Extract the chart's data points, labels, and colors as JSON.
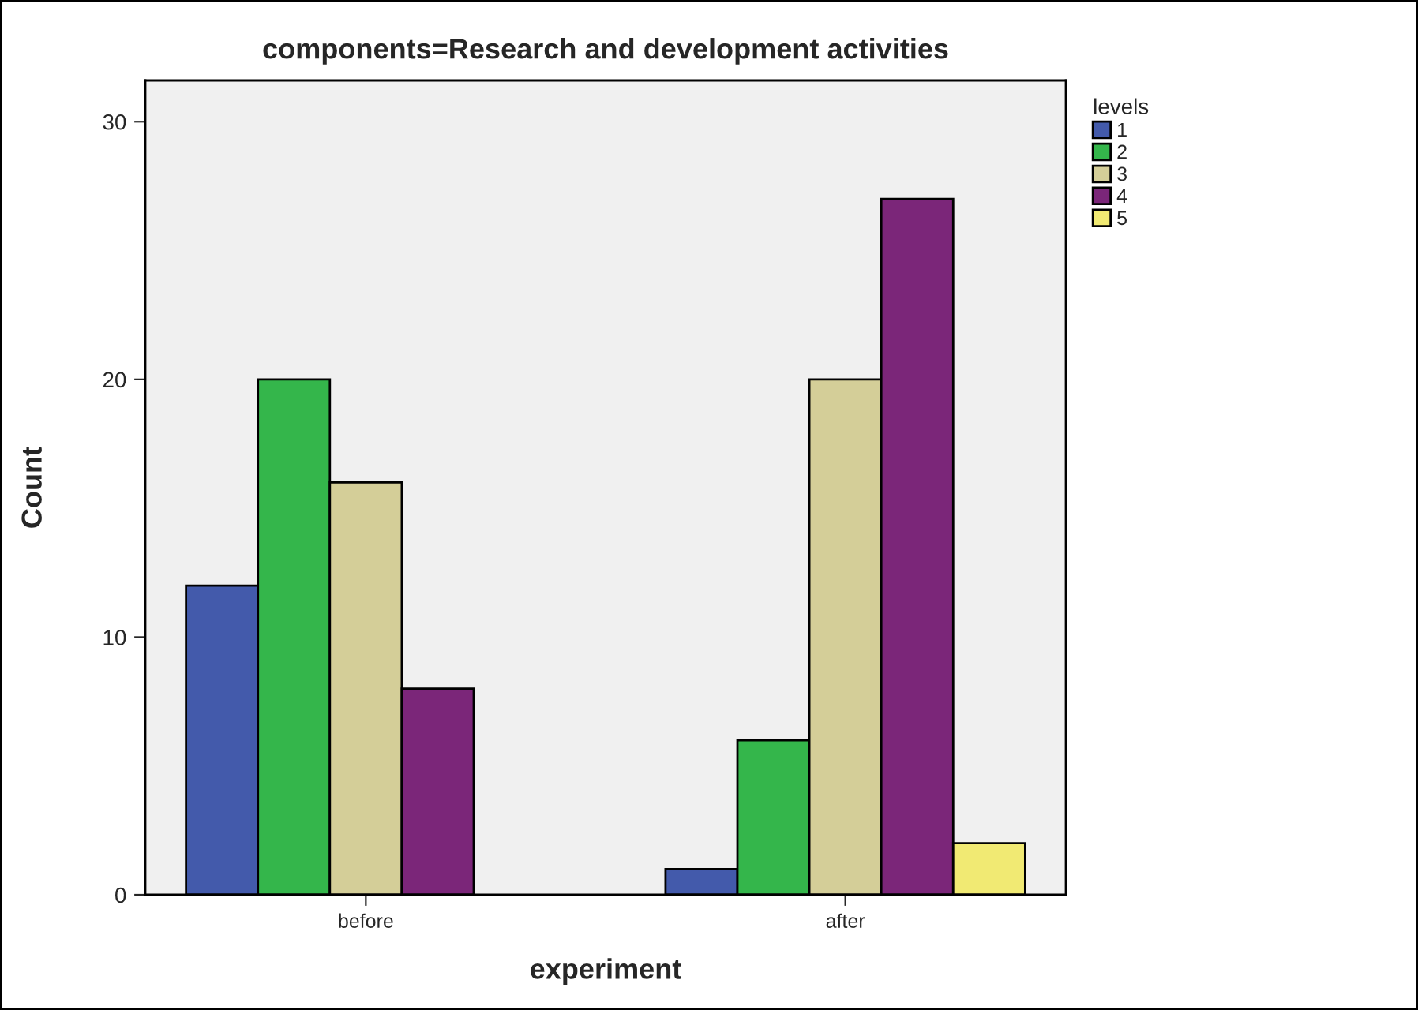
{
  "chart_data": {
    "type": "bar",
    "title": "components=Research and development activities",
    "xlabel": "experiment",
    "ylabel": "Count",
    "legend_title": "levels",
    "categories": [
      "before",
      "after"
    ],
    "series": [
      {
        "name": "1",
        "color": "#435aab",
        "values": [
          12,
          1
        ]
      },
      {
        "name": "2",
        "color": "#34b64b",
        "values": [
          20,
          6
        ]
      },
      {
        "name": "3",
        "color": "#d4ce98",
        "values": [
          16,
          20
        ]
      },
      {
        "name": "4",
        "color": "#7b2679",
        "values": [
          8,
          27
        ]
      },
      {
        "name": "5",
        "color": "#f1ea73",
        "values": [
          null,
          2
        ]
      }
    ],
    "ylim": [
      0,
      31.6
    ],
    "yticks": [
      0,
      10,
      20,
      30
    ],
    "grid": false,
    "legend": "top right"
  }
}
